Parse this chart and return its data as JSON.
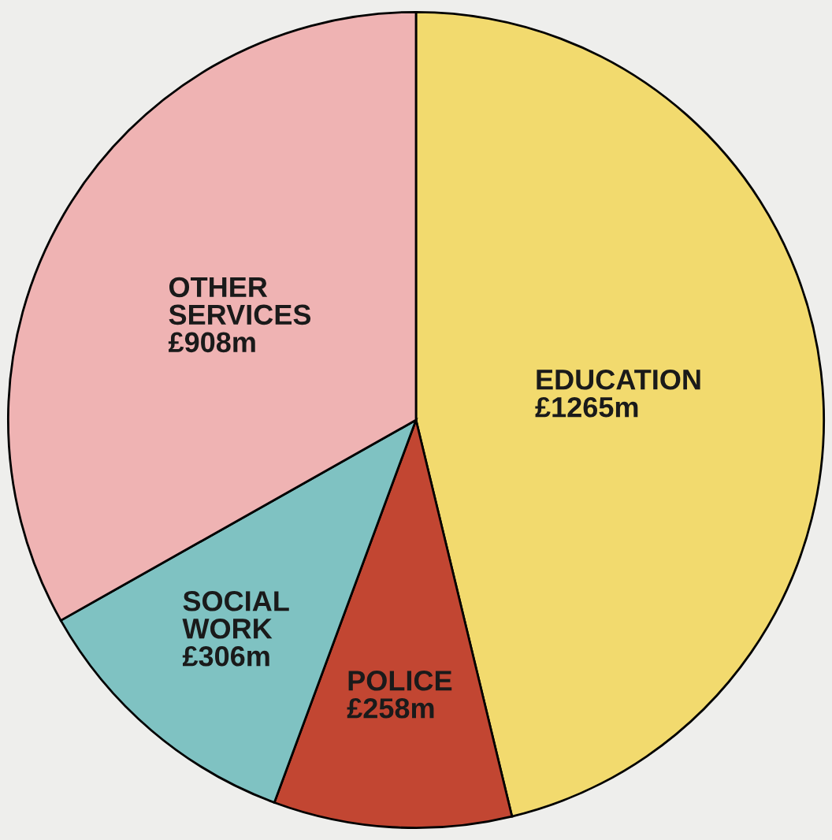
{
  "chart_data": {
    "type": "pie",
    "categories": [
      "EDUCATION",
      "POLICE",
      "SOCIAL WORK",
      "OTHER SERVICES"
    ],
    "values": [
      1265,
      258,
      306,
      908
    ],
    "value_labels": [
      "£1265m",
      "£258m",
      "£306m",
      "£908m"
    ],
    "colors": [
      "#f2da6e",
      "#c24632",
      "#7fc2c2",
      "#efb3b3"
    ]
  }
}
